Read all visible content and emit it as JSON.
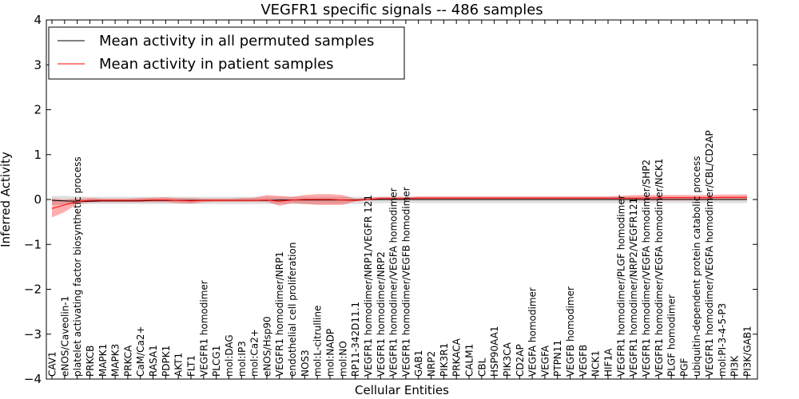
{
  "chart_data": {
    "type": "line",
    "title": "VEGFR1 specific signals -- 486 samples",
    "xlabel": "Cellular Entities",
    "ylabel": "Inferred Activity",
    "ylim": [
      -4,
      4
    ],
    "yticks": [
      -4,
      -3,
      -2,
      -1,
      0,
      1,
      2,
      3,
      4
    ],
    "ytick_labels": [
      "−4",
      "−3",
      "−2",
      "−1",
      "0",
      "1",
      "2",
      "3",
      "4"
    ],
    "legend": {
      "location": "top-left"
    },
    "categories": [
      "CAV1",
      "eNOS/Caveolin-1",
      "platelet activating factor biosynthetic process",
      "PRKCB",
      "MAPK1",
      "MAPK3",
      "PRKCA",
      "CaM/Ca2+",
      "RASA1",
      "PDPK1",
      "AKT1",
      "FLT1",
      "VEGFR1 homodimer",
      "PLCG1",
      "mol:DAG",
      "mol:IP3",
      "mol:Ca2+",
      "eNOS/Hsp90",
      "VEGFR1 homodimer/NRP1",
      "endothelial cell proliferation",
      "NOS3",
      "mol:L-citrulline",
      "mol:NADP",
      "mol:NO",
      "RP11-342D11.1",
      "VEGFR1 homodimer/NRP1/VEGFR 121",
      "VEGFR1 homodimer/NRP2",
      "VEGFR1 homodimer/VEGFA homodimer",
      "VEGFR1 homodimer/VEGFB homodimer",
      "GAB1",
      "NRP2",
      "PIK3R1",
      "PRKACA",
      "CALM1",
      "CBL",
      "HSP90AA1",
      "PIK3CA",
      "CD2AP",
      "VEGFA homodimer",
      "VEGFA",
      "PTPN11",
      "VEGFB homodimer",
      "VEGFB",
      "NCK1",
      "HIF1A",
      "VEGFR1 homodimer/PLGF homodimer",
      "VEGFR1 homodimer/NRP2/VEGFR121",
      "VEGFR1 homodimer/VEGFA homodimer/SHP2",
      "VEGFR1 homodimer/VEGFA homodimer/NCK1",
      "PLGF homodimer",
      "PGF",
      "ubiquitin-dependent protein catabolic process",
      "VEGFR1 homodimer/VEGFA homodimer/CBL/CD2AP",
      "mol:PI-3-4-5-P3",
      "PI3K",
      "PI3K/GAB1"
    ],
    "series": [
      {
        "name": "Mean activity in all permuted samples",
        "color": "#000000",
        "values": [
          -0.02,
          -0.03,
          -0.04,
          -0.04,
          -0.03,
          -0.03,
          -0.03,
          -0.03,
          -0.02,
          -0.02,
          -0.02,
          -0.02,
          -0.02,
          -0.02,
          -0.02,
          -0.02,
          -0.02,
          -0.02,
          -0.01,
          -0.01,
          -0.01,
          -0.01,
          -0.01,
          -0.01,
          -0.01,
          0.0,
          0.0,
          0.0,
          0.0,
          0.0,
          0.0,
          0.0,
          0.0,
          0.0,
          0.0,
          0.0,
          0.0,
          0.0,
          0.0,
          0.0,
          0.0,
          0.0,
          0.0,
          0.0,
          0.0,
          0.0,
          0.0,
          0.0,
          0.0,
          0.0,
          0.0,
          0.0,
          0.0,
          0.0,
          0.0,
          0.0
        ],
        "band_low": [
          -0.12,
          -0.12,
          -0.11,
          -0.1,
          -0.1,
          -0.1,
          -0.1,
          -0.1,
          -0.1,
          -0.1,
          -0.1,
          -0.1,
          -0.1,
          -0.1,
          -0.1,
          -0.1,
          -0.1,
          -0.1,
          -0.1,
          -0.1,
          -0.1,
          -0.1,
          -0.1,
          -0.1,
          -0.1,
          -0.09,
          -0.08,
          -0.08,
          -0.08,
          -0.08,
          -0.08,
          -0.08,
          -0.08,
          -0.08,
          -0.08,
          -0.08,
          -0.08,
          -0.08,
          -0.08,
          -0.08,
          -0.08,
          -0.08,
          -0.08,
          -0.08,
          -0.08,
          -0.08,
          -0.08,
          -0.08,
          -0.08,
          -0.08,
          -0.08,
          -0.08,
          -0.08,
          -0.08,
          -0.08,
          -0.08
        ],
        "band_high": [
          0.08,
          0.08,
          0.07,
          0.06,
          0.06,
          0.06,
          0.06,
          0.06,
          0.06,
          0.06,
          0.06,
          0.06,
          0.06,
          0.06,
          0.06,
          0.06,
          0.06,
          0.06,
          0.06,
          0.06,
          0.06,
          0.06,
          0.06,
          0.06,
          0.06,
          0.06,
          0.06,
          0.06,
          0.06,
          0.06,
          0.06,
          0.06,
          0.06,
          0.06,
          0.06,
          0.06,
          0.06,
          0.06,
          0.06,
          0.06,
          0.06,
          0.06,
          0.06,
          0.06,
          0.06,
          0.06,
          0.06,
          0.06,
          0.06,
          0.06,
          0.06,
          0.06,
          0.06,
          0.06,
          0.06,
          0.06
        ]
      },
      {
        "name": "Mean activity in patient samples",
        "color": "#ff0000",
        "values": [
          -0.2,
          -0.12,
          -0.04,
          -0.02,
          -0.02,
          -0.02,
          -0.02,
          -0.02,
          -0.01,
          -0.01,
          -0.02,
          -0.03,
          -0.02,
          -0.02,
          -0.02,
          -0.02,
          -0.02,
          -0.01,
          -0.04,
          -0.01,
          0.0,
          0.0,
          0.0,
          -0.01,
          -0.02,
          0.0,
          0.02,
          0.02,
          0.02,
          0.03,
          0.03,
          0.03,
          0.03,
          0.03,
          0.03,
          0.03,
          0.03,
          0.03,
          0.03,
          0.03,
          0.03,
          0.03,
          0.03,
          0.03,
          0.03,
          0.03,
          0.03,
          0.03,
          0.04,
          0.04,
          0.04,
          0.04,
          0.04,
          0.05,
          0.05,
          0.05
        ],
        "band_low": [
          -0.4,
          -0.28,
          -0.1,
          -0.06,
          -0.06,
          -0.06,
          -0.06,
          -0.06,
          -0.06,
          -0.06,
          -0.08,
          -0.09,
          -0.06,
          -0.05,
          -0.05,
          -0.05,
          -0.05,
          -0.05,
          -0.14,
          -0.08,
          -0.1,
          -0.12,
          -0.12,
          -0.12,
          -0.04,
          -0.02,
          -0.01,
          -0.01,
          -0.01,
          -0.01,
          -0.01,
          -0.01,
          -0.01,
          -0.01,
          -0.01,
          -0.01,
          -0.01,
          -0.01,
          -0.01,
          -0.01,
          -0.01,
          -0.01,
          -0.01,
          -0.01,
          -0.01,
          -0.01,
          -0.02,
          -0.02,
          -0.02,
          -0.02,
          -0.02,
          -0.02,
          -0.01,
          -0.01,
          -0.01,
          -0.01
        ],
        "band_high": [
          0.02,
          0.0,
          0.02,
          0.03,
          0.02,
          0.02,
          0.02,
          0.03,
          0.04,
          0.05,
          0.03,
          0.03,
          0.02,
          0.02,
          0.02,
          0.03,
          0.04,
          0.1,
          0.08,
          0.06,
          0.1,
          0.12,
          0.12,
          0.1,
          0.02,
          0.04,
          0.06,
          0.06,
          0.06,
          0.07,
          0.07,
          0.07,
          0.07,
          0.07,
          0.07,
          0.07,
          0.07,
          0.07,
          0.07,
          0.07,
          0.07,
          0.07,
          0.07,
          0.07,
          0.07,
          0.08,
          0.1,
          0.1,
          0.1,
          0.1,
          0.1,
          0.1,
          0.1,
          0.11,
          0.11,
          0.11
        ]
      }
    ]
  }
}
